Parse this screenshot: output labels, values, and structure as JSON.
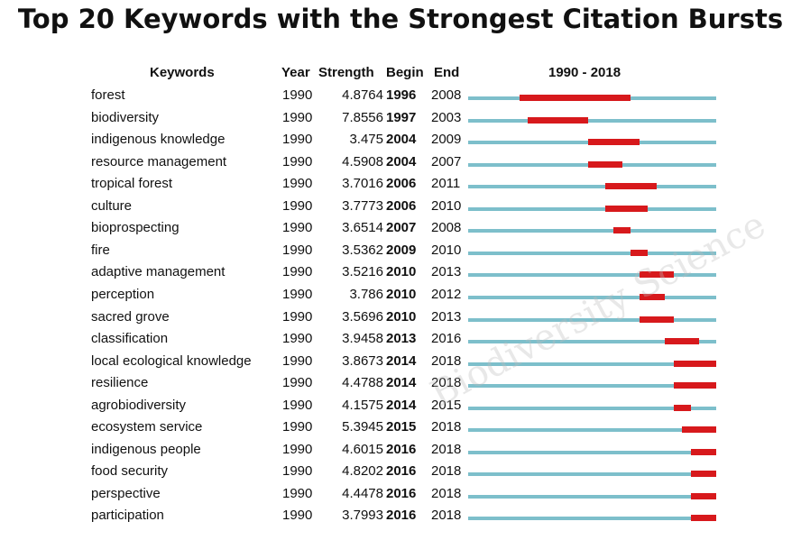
{
  "chart_data": {
    "type": "table",
    "title": "Top 20 Keywords with the Strongest Citation Bursts",
    "columns": [
      "Keywords",
      "Year",
      "Strength",
      "Begin",
      "End",
      "1990 - 2018"
    ],
    "range": [
      1990,
      2018
    ],
    "colors": {
      "timeline": "#7dbfcb",
      "burst": "#d7191c"
    },
    "rows": [
      {
        "keyword": "forest",
        "year": "1990",
        "strength": "4.8764",
        "begin": "1996",
        "end": "2008"
      },
      {
        "keyword": "biodiversity",
        "year": "1990",
        "strength": "7.8556",
        "begin": "1997",
        "end": "2003"
      },
      {
        "keyword": "indigenous knowledge",
        "year": "1990",
        "strength": "3.475",
        "begin": "2004",
        "end": "2009"
      },
      {
        "keyword": "resource management",
        "year": "1990",
        "strength": "4.5908",
        "begin": "2004",
        "end": "2007"
      },
      {
        "keyword": "tropical forest",
        "year": "1990",
        "strength": "3.7016",
        "begin": "2006",
        "end": "2011"
      },
      {
        "keyword": "culture",
        "year": "1990",
        "strength": "3.7773",
        "begin": "2006",
        "end": "2010"
      },
      {
        "keyword": "bioprospecting",
        "year": "1990",
        "strength": "3.6514",
        "begin": "2007",
        "end": "2008"
      },
      {
        "keyword": "fire",
        "year": "1990",
        "strength": "3.5362",
        "begin": "2009",
        "end": "2010"
      },
      {
        "keyword": "adaptive management",
        "year": "1990",
        "strength": "3.5216",
        "begin": "2010",
        "end": "2013"
      },
      {
        "keyword": "perception",
        "year": "1990",
        "strength": "3.786",
        "begin": "2010",
        "end": "2012"
      },
      {
        "keyword": "sacred grove",
        "year": "1990",
        "strength": "3.5696",
        "begin": "2010",
        "end": "2013"
      },
      {
        "keyword": "classification",
        "year": "1990",
        "strength": "3.9458",
        "begin": "2013",
        "end": "2016"
      },
      {
        "keyword": "local ecological knowledge",
        "year": "1990",
        "strength": "3.8673",
        "begin": "2014",
        "end": "2018"
      },
      {
        "keyword": "resilience",
        "year": "1990",
        "strength": "4.4788",
        "begin": "2014",
        "end": "2018"
      },
      {
        "keyword": "agrobiodiversity",
        "year": "1990",
        "strength": "4.1575",
        "begin": "2014",
        "end": "2015"
      },
      {
        "keyword": "ecosystem service",
        "year": "1990",
        "strength": "5.3945",
        "begin": "2015",
        "end": "2018"
      },
      {
        "keyword": "indigenous people",
        "year": "1990",
        "strength": "4.6015",
        "begin": "2016",
        "end": "2018"
      },
      {
        "keyword": "food security",
        "year": "1990",
        "strength": "4.8202",
        "begin": "2016",
        "end": "2018"
      },
      {
        "keyword": "perspective",
        "year": "1990",
        "strength": "4.4478",
        "begin": "2016",
        "end": "2018"
      },
      {
        "keyword": "participation",
        "year": "1990",
        "strength": "3.7993",
        "begin": "2016",
        "end": "2018"
      }
    ]
  },
  "watermark": "Biodiversity Science"
}
